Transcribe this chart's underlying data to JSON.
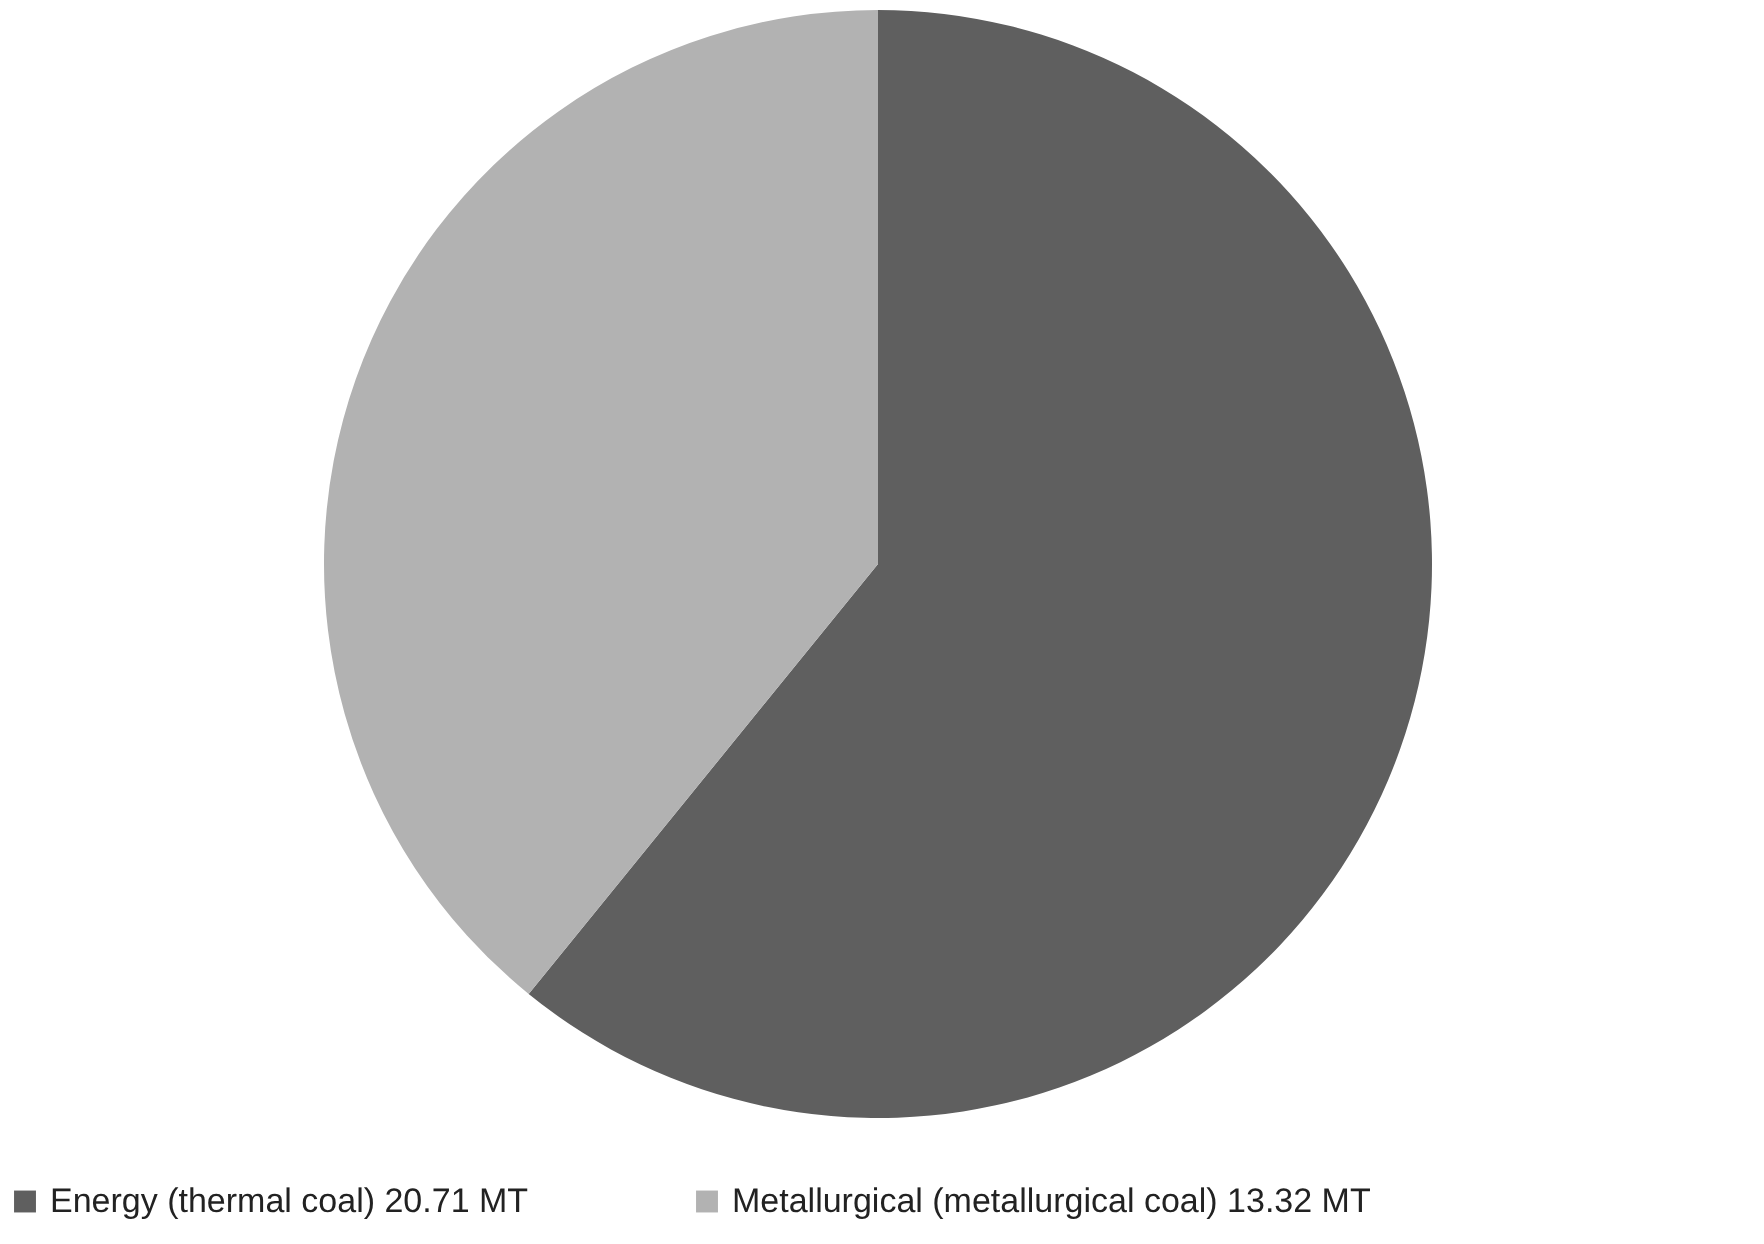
{
  "chart_data": {
    "type": "pie",
    "categories": [
      "Energy (thermal coal) 20.71 MT",
      "Metallurgical (metallurgical coal) 13.32 MT"
    ],
    "values": [
      20.71,
      13.32
    ],
    "colors": [
      "#5f5f5f",
      "#b2b2b2"
    ],
    "legend": "bottom"
  }
}
